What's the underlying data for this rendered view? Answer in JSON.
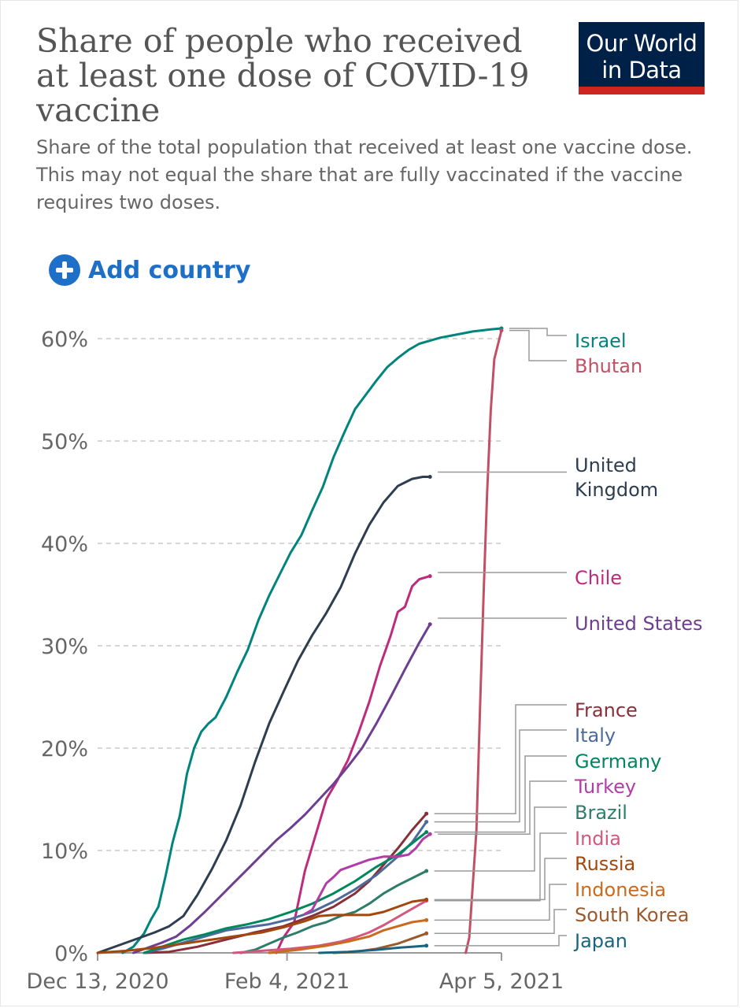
{
  "header": {
    "title": "Share of people who received at least one dose of COVID-19 vaccine",
    "subtitle": "Share of the total population that received at least one vaccine dose. This may not equal the share that are fully vaccinated if the vaccine requires two doses.",
    "logo_line1": "Our World",
    "logo_line2": "in Data",
    "logo_bg_color": "#002147",
    "logo_accent_color": "#ce261e"
  },
  "controls": {
    "add_country_label": "Add country",
    "add_country_icon": "plus-circle-icon",
    "accent_color": "#1d6fc7"
  },
  "chart_data": {
    "type": "line",
    "title": "Share of people who received at least one dose of COVID-19 vaccine",
    "xlabel": "",
    "ylabel": "",
    "x_range": [
      "2020-12-13",
      "2021-04-05"
    ],
    "x_ticks": [
      "Dec 13, 2020",
      "Feb 4, 2021",
      "Apr 5, 2021"
    ],
    "y_ticks": [
      "0%",
      "10%",
      "20%",
      "30%",
      "40%",
      "50%",
      "60%"
    ],
    "ylim": [
      0,
      60
    ],
    "grid": "horizontal-dashed",
    "legend_position": "right",
    "series": [
      {
        "name": "Israel",
        "color": "#00847e",
        "label_lines": [
          "Israel"
        ],
        "points": [
          [
            7,
            0
          ],
          [
            10,
            0.6
          ],
          [
            13,
            1.9
          ],
          [
            15,
            3.3
          ],
          [
            17,
            4.5
          ],
          [
            19,
            7.5
          ],
          [
            21,
            10.8
          ],
          [
            23,
            13.4
          ],
          [
            25,
            17.5
          ],
          [
            27,
            20.0
          ],
          [
            29,
            21.6
          ],
          [
            31,
            22.4
          ],
          [
            33,
            23.0
          ],
          [
            36,
            25.0
          ],
          [
            39,
            27.4
          ],
          [
            42,
            29.6
          ],
          [
            45,
            32.5
          ],
          [
            48,
            34.9
          ],
          [
            51,
            37.0
          ],
          [
            54,
            39.1
          ],
          [
            57,
            40.8
          ],
          [
            60,
            43.2
          ],
          [
            63,
            45.5
          ],
          [
            66,
            48.4
          ],
          [
            69,
            50.8
          ],
          [
            72,
            53.1
          ],
          [
            75,
            54.5
          ],
          [
            78,
            55.9
          ],
          [
            81,
            57.2
          ],
          [
            84,
            58.1
          ],
          [
            87,
            58.9
          ],
          [
            90,
            59.5
          ],
          [
            93,
            59.8
          ],
          [
            96,
            60.1
          ],
          [
            99,
            60.3
          ],
          [
            102,
            60.5
          ],
          [
            105,
            60.7
          ],
          [
            110,
            60.9
          ],
          [
            113,
            61.0
          ]
        ]
      },
      {
        "name": "Bhutan",
        "color": "#c15065",
        "label_lines": [
          "Bhutan"
        ],
        "points": [
          [
            103,
            0
          ],
          [
            104,
            1.5
          ],
          [
            106,
            12
          ],
          [
            107,
            24
          ],
          [
            108,
            35
          ],
          [
            109,
            45
          ],
          [
            110,
            53
          ],
          [
            111,
            58
          ],
          [
            113,
            60.8
          ]
        ]
      },
      {
        "name": "United Kingdom",
        "color": "#2d3e50",
        "label_lines": [
          "United",
          "Kingdom"
        ],
        "points": [
          [
            0,
            0
          ],
          [
            4,
            0.5
          ],
          [
            8,
            1
          ],
          [
            12,
            1.5
          ],
          [
            16,
            2
          ],
          [
            20,
            2.6
          ],
          [
            24,
            3.6
          ],
          [
            28,
            5.7
          ],
          [
            32,
            8.2
          ],
          [
            36,
            11.0
          ],
          [
            40,
            14.4
          ],
          [
            44,
            18.6
          ],
          [
            48,
            22.4
          ],
          [
            52,
            25.5
          ],
          [
            56,
            28.5
          ],
          [
            60,
            31.0
          ],
          [
            64,
            33.2
          ],
          [
            68,
            35.7
          ],
          [
            72,
            39.0
          ],
          [
            76,
            41.8
          ],
          [
            80,
            44.0
          ],
          [
            84,
            45.6
          ],
          [
            88,
            46.3
          ],
          [
            91,
            46.5
          ],
          [
            93,
            46.5
          ]
        ]
      },
      {
        "name": "Chile",
        "color": "#be2a7d",
        "label_lines": [
          "Chile"
        ],
        "points": [
          [
            50,
            0
          ],
          [
            52,
            1.5
          ],
          [
            55,
            3.0
          ],
          [
            58,
            8.0
          ],
          [
            61,
            11.5
          ],
          [
            64,
            15.0
          ],
          [
            67,
            16.8
          ],
          [
            70,
            18.8
          ],
          [
            73,
            21.5
          ],
          [
            76,
            24.5
          ],
          [
            79,
            28.0
          ],
          [
            82,
            31.0
          ],
          [
            84,
            33.3
          ],
          [
            86,
            33.8
          ],
          [
            88,
            35.8
          ],
          [
            90,
            36.5
          ],
          [
            93,
            36.8
          ]
        ]
      },
      {
        "name": "United States",
        "color": "#6d3e91",
        "label_lines": [
          "United States"
        ],
        "points": [
          [
            10,
            0
          ],
          [
            14,
            0.5
          ],
          [
            18,
            1.0
          ],
          [
            22,
            1.6
          ],
          [
            26,
            2.7
          ],
          [
            30,
            4.0
          ],
          [
            34,
            5.4
          ],
          [
            38,
            6.8
          ],
          [
            42,
            8.2
          ],
          [
            46,
            9.6
          ],
          [
            50,
            11.0
          ],
          [
            54,
            12.2
          ],
          [
            58,
            13.5
          ],
          [
            62,
            15.0
          ],
          [
            66,
            16.5
          ],
          [
            70,
            18.2
          ],
          [
            74,
            20.0
          ],
          [
            78,
            22.4
          ],
          [
            82,
            25.0
          ],
          [
            86,
            27.7
          ],
          [
            90,
            30.3
          ],
          [
            93,
            32.1
          ]
        ]
      },
      {
        "name": "France",
        "color": "#883039",
        "label_lines": [
          "France"
        ],
        "points": [
          [
            13,
            0
          ],
          [
            20,
            0.1
          ],
          [
            28,
            0.6
          ],
          [
            36,
            1.3
          ],
          [
            44,
            2.0
          ],
          [
            52,
            2.6
          ],
          [
            60,
            3.6
          ],
          [
            66,
            4.5
          ],
          [
            72,
            5.8
          ],
          [
            76,
            7.0
          ],
          [
            80,
            8.6
          ],
          [
            84,
            10.2
          ],
          [
            88,
            12.0
          ],
          [
            92,
            13.6
          ]
        ]
      },
      {
        "name": "Italy",
        "color": "#4c6a9c",
        "label_lines": [
          "Italy"
        ],
        "points": [
          [
            13,
            0
          ],
          [
            18,
            0.4
          ],
          [
            24,
            1.0
          ],
          [
            30,
            1.6
          ],
          [
            36,
            2.2
          ],
          [
            42,
            2.5
          ],
          [
            48,
            2.8
          ],
          [
            54,
            3.3
          ],
          [
            60,
            4.0
          ],
          [
            66,
            5.0
          ],
          [
            72,
            6.2
          ],
          [
            78,
            7.6
          ],
          [
            84,
            9.4
          ],
          [
            88,
            10.8
          ],
          [
            92,
            12.8
          ]
        ]
      },
      {
        "name": "Germany",
        "color": "#00875e",
        "label_lines": [
          "Germany"
        ],
        "points": [
          [
            13,
            0
          ],
          [
            18,
            0.6
          ],
          [
            24,
            1.3
          ],
          [
            30,
            1.8
          ],
          [
            36,
            2.4
          ],
          [
            42,
            2.8
          ],
          [
            48,
            3.3
          ],
          [
            54,
            4.0
          ],
          [
            60,
            4.8
          ],
          [
            66,
            5.8
          ],
          [
            72,
            7.0
          ],
          [
            78,
            8.4
          ],
          [
            84,
            9.6
          ],
          [
            88,
            10.7
          ],
          [
            92,
            11.8
          ]
        ]
      },
      {
        "name": "Turkey",
        "color": "#b13da6",
        "label_lines": [
          "Turkey"
        ],
        "points": [
          [
            58,
            3.8
          ],
          [
            60,
            4.2
          ],
          [
            62,
            5.5
          ],
          [
            64,
            6.8
          ],
          [
            66,
            7.4
          ],
          [
            68,
            8.1
          ],
          [
            72,
            8.6
          ],
          [
            76,
            9.1
          ],
          [
            80,
            9.4
          ],
          [
            84,
            9.4
          ],
          [
            87,
            9.6
          ],
          [
            89,
            10.2
          ],
          [
            91,
            11.1
          ],
          [
            93,
            11.6
          ]
        ]
      },
      {
        "name": "Brazil",
        "color": "#2e7d6a",
        "label_lines": [
          "Brazil"
        ],
        "points": [
          [
            40,
            0
          ],
          [
            44,
            0.3
          ],
          [
            48,
            0.9
          ],
          [
            52,
            1.5
          ],
          [
            56,
            2.0
          ],
          [
            60,
            2.6
          ],
          [
            64,
            3.0
          ],
          [
            68,
            3.6
          ],
          [
            72,
            4.0
          ],
          [
            76,
            4.8
          ],
          [
            80,
            5.8
          ],
          [
            84,
            6.6
          ],
          [
            88,
            7.3
          ],
          [
            92,
            8.0
          ]
        ]
      },
      {
        "name": "India",
        "color": "#d4577d",
        "label_lines": [
          "India"
        ],
        "points": [
          [
            38,
            0
          ],
          [
            46,
            0.2
          ],
          [
            54,
            0.4
          ],
          [
            62,
            0.7
          ],
          [
            68,
            1.1
          ],
          [
            72,
            1.5
          ],
          [
            76,
            2.0
          ],
          [
            80,
            2.7
          ],
          [
            84,
            3.5
          ],
          [
            88,
            4.3
          ],
          [
            92,
            5.1
          ]
        ]
      },
      {
        "name": "Russia",
        "color": "#a2480f",
        "label_lines": [
          "Russia"
        ],
        "points": [
          [
            0,
            0
          ],
          [
            8,
            0.2
          ],
          [
            16,
            0.5
          ],
          [
            24,
            0.9
          ],
          [
            32,
            1.3
          ],
          [
            40,
            1.7
          ],
          [
            46,
            2.0
          ],
          [
            52,
            2.5
          ],
          [
            58,
            3.1
          ],
          [
            62,
            3.6
          ],
          [
            66,
            3.7
          ],
          [
            72,
            3.7
          ],
          [
            76,
            3.7
          ],
          [
            80,
            4.0
          ],
          [
            84,
            4.5
          ],
          [
            88,
            5.0
          ],
          [
            92,
            5.2
          ]
        ]
      },
      {
        "name": "Indonesia",
        "color": "#c96a1e",
        "label_lines": [
          "Indonesia"
        ],
        "points": [
          [
            48,
            0
          ],
          [
            56,
            0.3
          ],
          [
            64,
            0.7
          ],
          [
            70,
            1.1
          ],
          [
            76,
            1.6
          ],
          [
            80,
            2.2
          ],
          [
            84,
            2.6
          ],
          [
            88,
            3.0
          ],
          [
            92,
            3.2
          ]
        ]
      },
      {
        "name": "South Korea",
        "color": "#9a5a2c",
        "label_lines": [
          "South Korea"
        ],
        "points": [
          [
            66,
            0
          ],
          [
            72,
            0.1
          ],
          [
            78,
            0.4
          ],
          [
            84,
            0.9
          ],
          [
            88,
            1.4
          ],
          [
            92,
            1.9
          ]
        ]
      },
      {
        "name": "Japan",
        "color": "#18657f",
        "label_lines": [
          "Japan"
        ],
        "points": [
          [
            62,
            0
          ],
          [
            70,
            0.1
          ],
          [
            78,
            0.3
          ],
          [
            84,
            0.5
          ],
          [
            88,
            0.6
          ],
          [
            92,
            0.7
          ]
        ]
      }
    ]
  }
}
